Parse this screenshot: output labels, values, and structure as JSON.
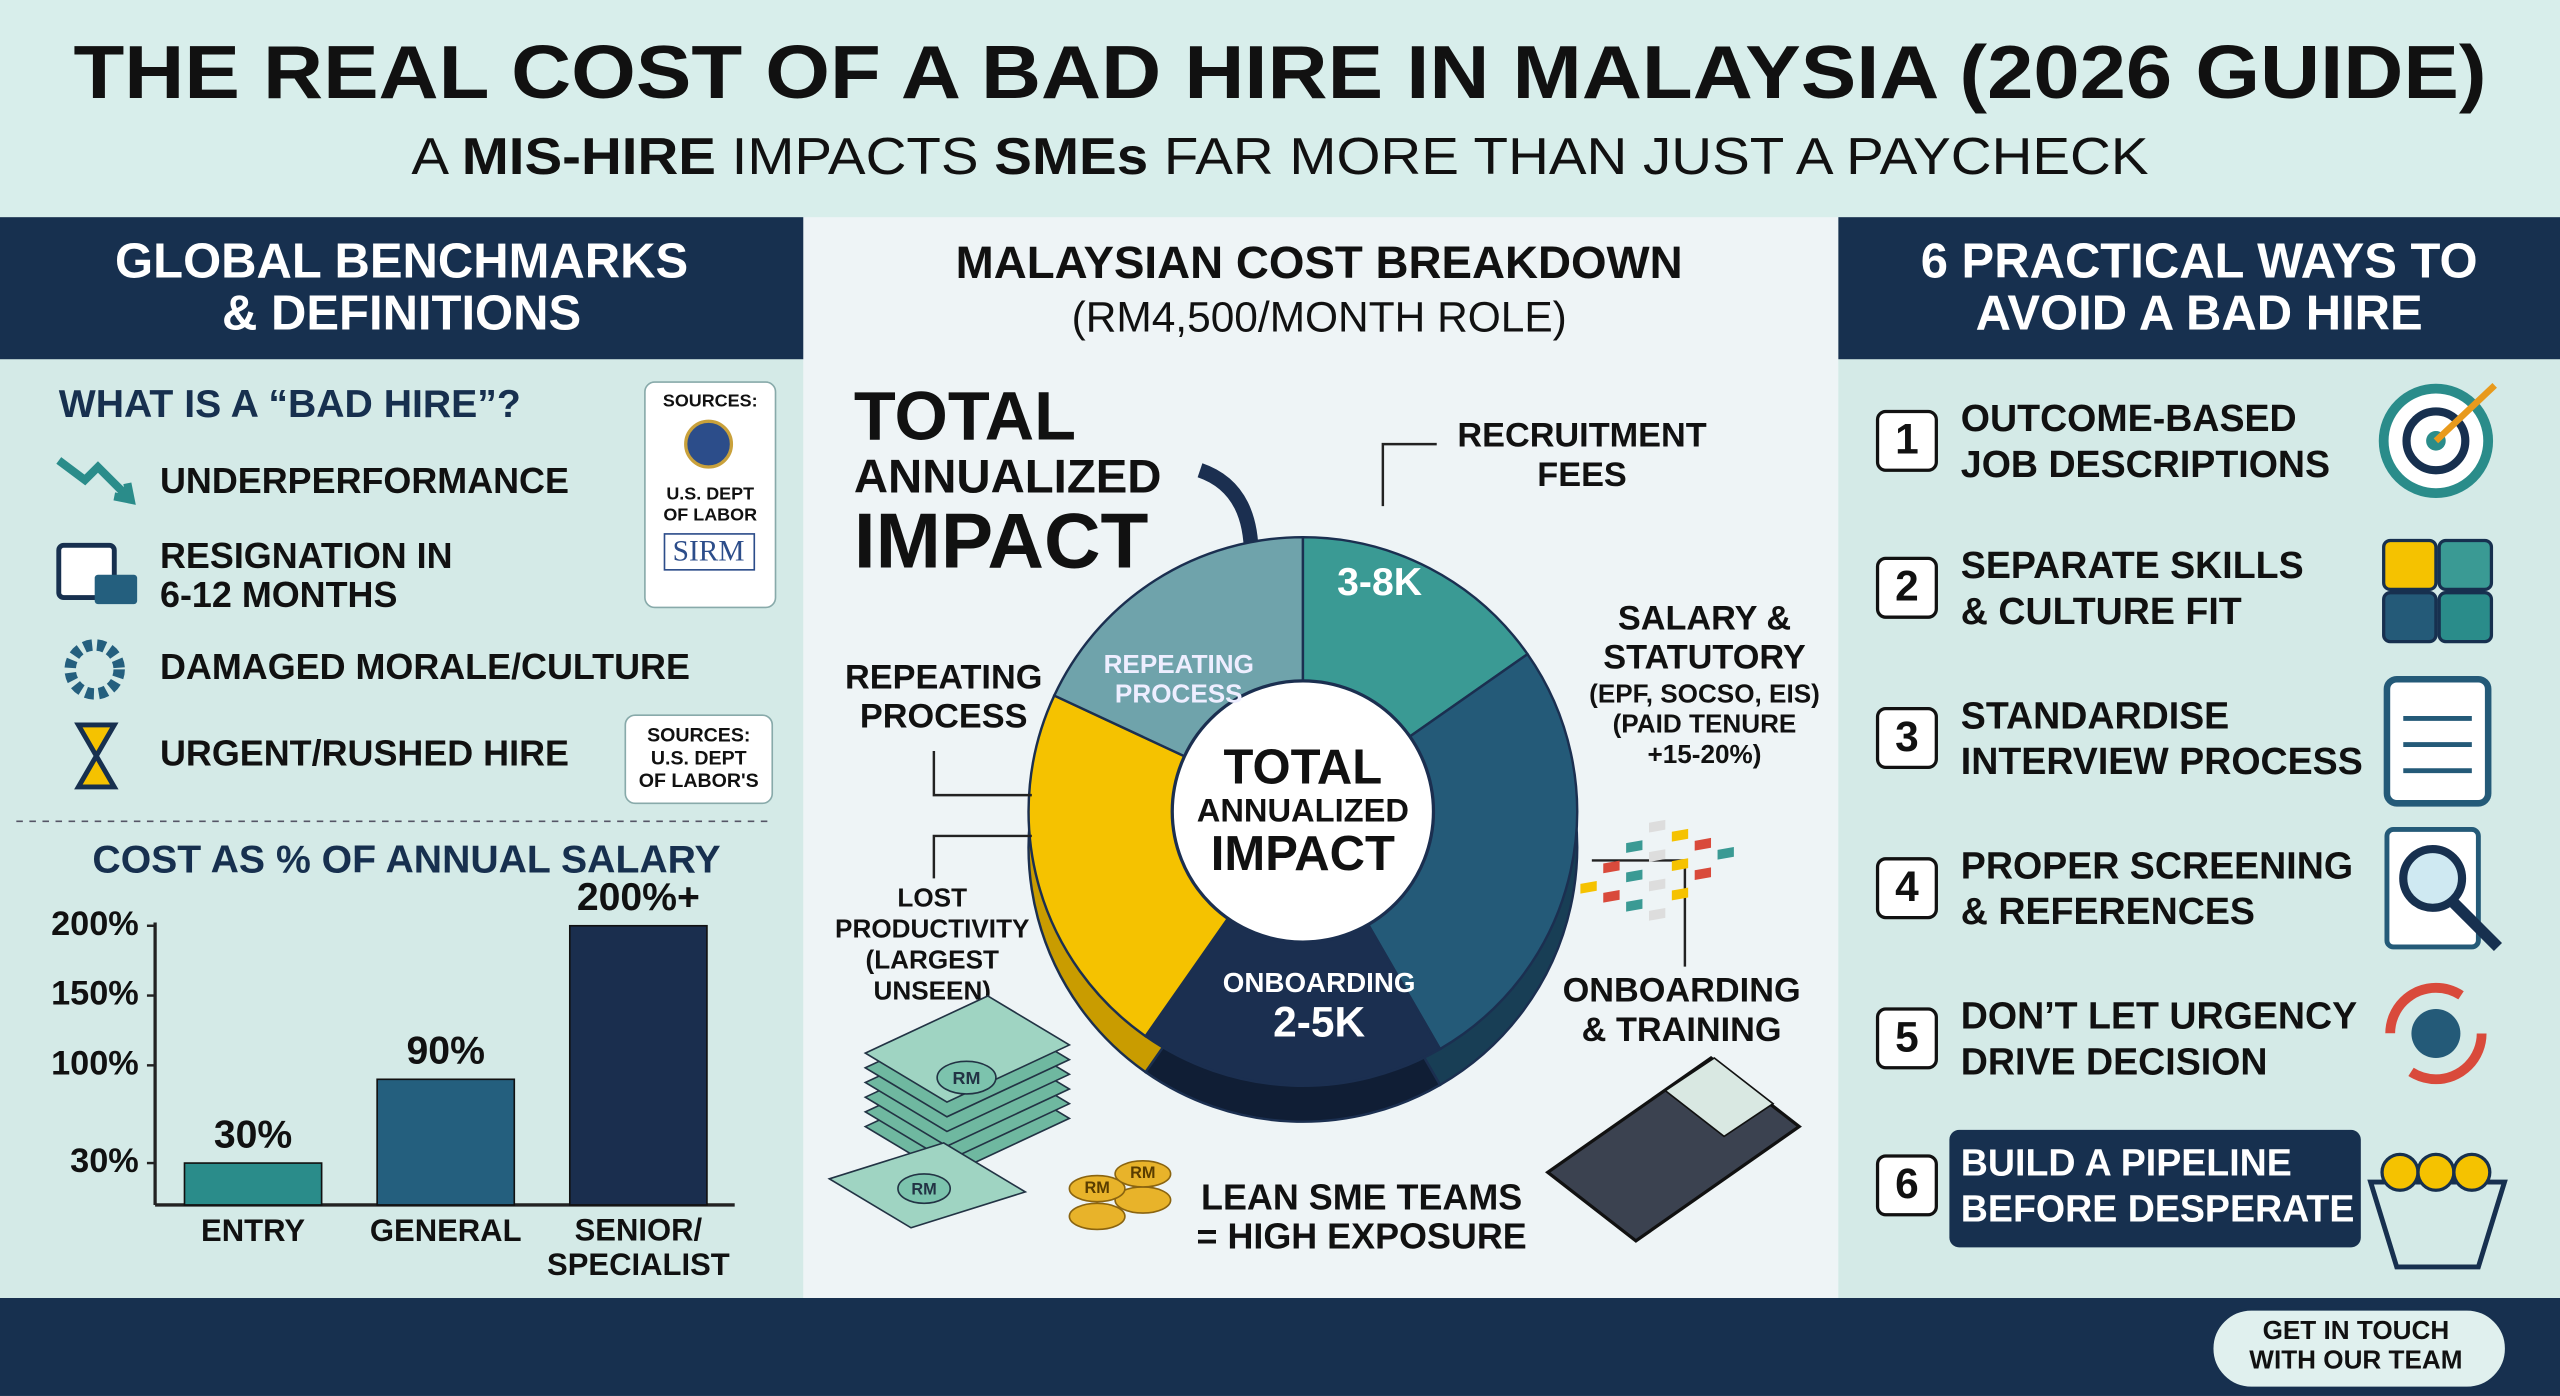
{
  "header": {
    "title": "THE REAL COST OF A BAD HIRE IN MALAYSIA (2026 GUIDE)",
    "subtitle": [
      "A ",
      "MIS-HIRE",
      " IMPACTS ",
      "SMEs",
      " FAR MORE THAN JUST A PAYCHECK"
    ]
  },
  "left": {
    "title": [
      "GLOBAL BENCHMARKS",
      "& DEFINITIONS"
    ],
    "question": "WHAT IS A “BAD HIRE”?",
    "items": [
      [
        "UNDERPERFORMANCE"
      ],
      [
        "RESIGNATION IN",
        "6-12 MONTHS"
      ],
      [
        "DAMAGED MORALE/CULTURE"
      ],
      [
        "URGENT/RUSHED HIRE"
      ]
    ],
    "sources_1": [
      "SOURCES:",
      "U.S. DEPT",
      "OF LABOR",
      "SIRM"
    ],
    "sources_2": [
      "SOURCES:",
      "U.S. DEPT",
      "OF LABOR'S"
    ]
  },
  "chart_data": {
    "type": "bar",
    "title": "COST AS % OF ANNUAL SALARY",
    "categories": [
      "ENTRY",
      "GENERAL",
      "SENIOR/\nSPECIALIST"
    ],
    "values": [
      30,
      90,
      200
    ],
    "value_labels": [
      "30%",
      "90%",
      "200%+"
    ],
    "colors": [
      "#2a8c8a",
      "#245f7e",
      "#1a2e4e"
    ],
    "ylim": [
      0,
      200
    ],
    "yticks": [
      {
        "value": 30,
        "label": "30%"
      },
      {
        "value": 100,
        "label": "100%"
      },
      {
        "value": 150,
        "label": "150%"
      },
      {
        "value": 200,
        "label": "200%"
      }
    ]
  },
  "middle": {
    "title": [
      "MALAYSIAN COST BREAKDOWN",
      "(RM4,500/MONTH ROLE)"
    ],
    "callout": [
      "TOTAL",
      "ANNUALIZED",
      "IMPACT"
    ],
    "center": [
      "TOTAL",
      "ANNUALIZED",
      "IMPACT"
    ],
    "recruitment": {
      "label": [
        "RECRUITMENT",
        "FEES"
      ],
      "amount": "3-8K"
    },
    "salary": {
      "label": [
        "SALARY &",
        "STATUTORY"
      ],
      "note": [
        "(EPF, SOCSO, EIS)",
        "(PAID TENURE",
        "+15-20%)"
      ]
    },
    "onboarding": {
      "label": [
        "ONBOARDING",
        "& TRAINING"
      ],
      "inner": "ONBOARDING",
      "amount": "2-5K"
    },
    "lost": {
      "label": [
        "LOST",
        "PRODUCTIVITY",
        "(LARGEST",
        "UNSEEN)"
      ]
    },
    "repeating": {
      "label": [
        "REPEATING",
        "PROCESS"
      ],
      "inner": [
        "REPEATING",
        "PROCESS"
      ]
    },
    "money_mark": "RM",
    "exposure": [
      "LEAN SME TEAMS",
      "= HIGH EXPOSURE"
    ]
  },
  "right": {
    "title": [
      "6 PRACTICAL WAYS TO",
      "AVOID A BAD HIRE"
    ],
    "items": [
      {
        "number": 1,
        "lines": [
          "OUTCOME-BASED",
          "JOB DESCRIPTIONS"
        ]
      },
      {
        "number": 2,
        "lines": [
          "SEPARATE SKILLS",
          "& CULTURE FIT"
        ]
      },
      {
        "number": 3,
        "lines": [
          "STANDARDISE",
          "INTERVIEW PROCESS"
        ]
      },
      {
        "number": 4,
        "lines": [
          "PROPER SCREENING",
          "& REFERENCES"
        ]
      },
      {
        "number": 5,
        "lines": [
          "DON’T LET URGENCY",
          "DRIVE DECISION"
        ]
      },
      {
        "number": 6,
        "lines": [
          "BUILD A PIPELINE",
          "BEFORE DESPERATE"
        ]
      }
    ]
  },
  "footer": {
    "button": [
      "GET IN TOUCH",
      "WITH OUR TEAM"
    ]
  }
}
